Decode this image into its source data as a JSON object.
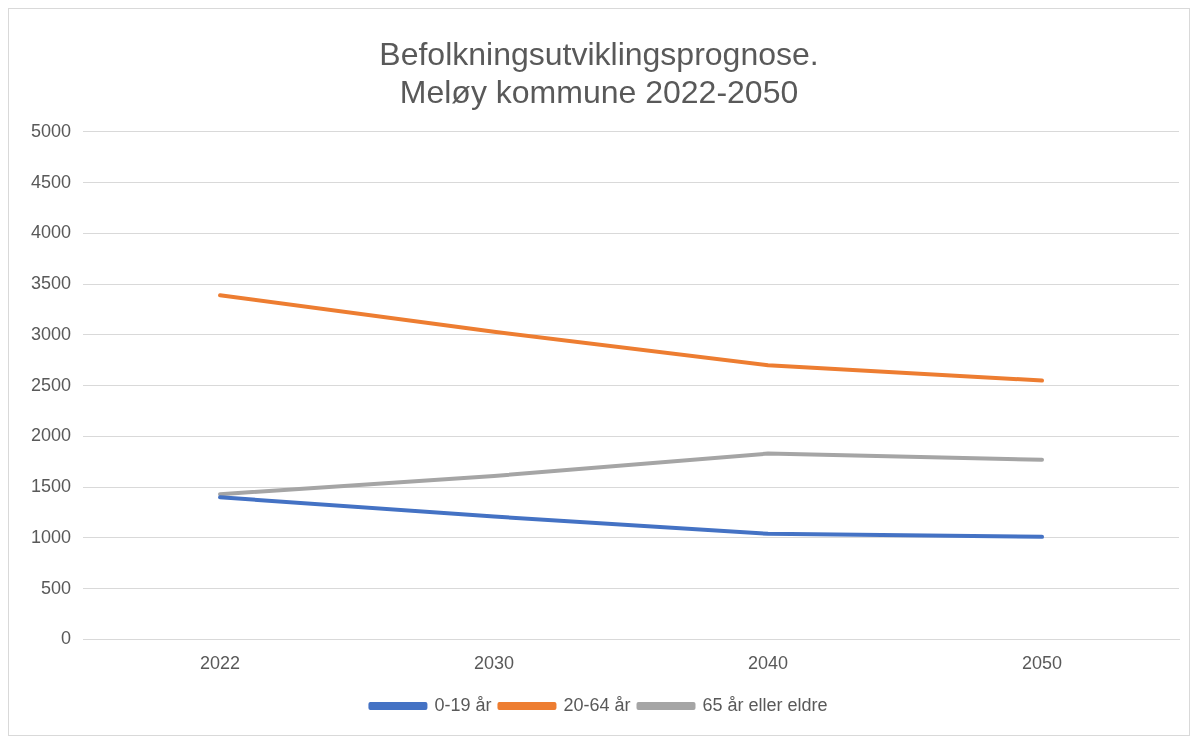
{
  "chart_data": {
    "type": "line",
    "title": [
      "Befolkningsutviklingsprognose.",
      "Meløy kommune 2022-2050"
    ],
    "categories": [
      "2022",
      "2030",
      "2040",
      "2050"
    ],
    "series": [
      {
        "name": "0-19 år",
        "color": "#4472c4",
        "values": [
          1400,
          1210,
          1040,
          1010
        ]
      },
      {
        "name": "20-64 år",
        "color": "#ed7d31",
        "values": [
          3390,
          3030,
          2700,
          2550
        ]
      },
      {
        "name": "65 år eller eldre",
        "color": "#a5a5a5",
        "values": [
          1430,
          1610,
          1830,
          1770
        ]
      }
    ],
    "ylim": [
      0,
      5000
    ],
    "yticks": [
      0,
      500,
      1000,
      1500,
      2000,
      2500,
      3000,
      3500,
      4000,
      4500,
      5000
    ],
    "grid": "y",
    "legend": "bottom",
    "marker": "none",
    "line_style": "solid"
  }
}
